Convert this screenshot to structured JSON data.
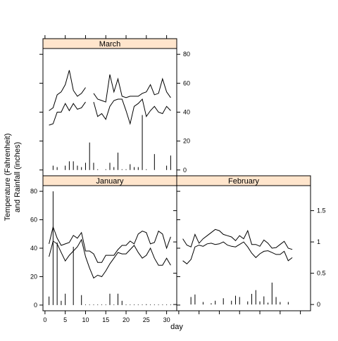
{
  "chart_data": {
    "type": "line",
    "xlabel": "day",
    "ylabel_lines": [
      "Temperature (Fahrenheit)",
      "and Rainfall (inches)"
    ],
    "x_ticks": [
      0,
      5,
      10,
      15,
      20,
      25,
      30
    ],
    "panels": [
      {
        "name": "January",
        "y_ticks": [
          0,
          20,
          40,
          60,
          80
        ],
        "ylim": [
          -4,
          84
        ],
        "xlim": [
          -0.5,
          32.5
        ],
        "series": [
          {
            "kind": "line",
            "x": [
              1,
              2,
              3,
              4,
              5,
              6,
              7,
              8,
              9,
              10,
              11,
              12,
              13,
              14,
              15,
              16,
              17,
              18,
              19,
              20,
              21,
              22,
              23,
              24,
              25,
              26,
              27,
              28,
              29,
              30,
              31
            ],
            "values": [
              43,
              55,
              47,
              42,
              43,
              44,
              49,
              47,
              51,
              38,
              38,
              36,
              30,
              30,
              35,
              35,
              35,
              39,
              42,
              42,
              45,
              43,
              50,
              52,
              51,
              43,
              44,
              52,
              50,
              40,
              48
            ]
          },
          {
            "kind": "line",
            "x": [
              1,
              2,
              3,
              4,
              5,
              6,
              7,
              8,
              9,
              10,
              11,
              12,
              13,
              14,
              15,
              16,
              17,
              18,
              19,
              20,
              21,
              22,
              23,
              24,
              25,
              26,
              27,
              28,
              29,
              30,
              31
            ],
            "values": [
              34,
              45,
              43,
              37,
              31,
              35,
              38,
              41,
              46,
              34,
              26,
              19,
              21,
              20,
              24,
              29,
              33,
              37,
              36,
              36,
              39,
              42,
              37,
              33,
              35,
              40,
              33,
              28,
              28,
              33,
              28
            ]
          },
          {
            "kind": "bar",
            "x": [
              1,
              2,
              3,
              4,
              5,
              7,
              9,
              10,
              11,
              12,
              13,
              14,
              15,
              16,
              17,
              18,
              19,
              20,
              21,
              22,
              23,
              24,
              25,
              26,
              27,
              28,
              29,
              30,
              31
            ],
            "values": [
              6,
              80,
              44,
              3,
              8,
              41,
              7,
              0.4,
              0.4,
              0.4,
              0.4,
              0.4,
              0.4,
              8,
              0.4,
              8,
              3,
              0.4,
              0.4,
              0.4,
              0.4,
              0.4,
              0.6,
              0.4,
              0.4,
              0.4,
              0.4,
              0.4,
              0.4
            ]
          }
        ]
      },
      {
        "name": "February",
        "y_ticks": [
          0,
          0.5,
          1,
          1.5
        ],
        "y_tick_labels": [
          "0",
          "0.5",
          "1",
          "1.5"
        ],
        "ylim": [
          -0.1,
          1.9
        ],
        "xlim": [
          -0.5,
          32.5
        ],
        "series": [
          {
            "kind": "line",
            "x": [
              1,
              2,
              3,
              4,
              5,
              6,
              7,
              8,
              9,
              10,
              11,
              12,
              13,
              14,
              15,
              16,
              17,
              18,
              19,
              20,
              21,
              22,
              23,
              24,
              25,
              26,
              27,
              28
            ],
            "values": [
              1.05,
              0.95,
              0.92,
              1.12,
              0.98,
              1.05,
              1.1,
              1.15,
              1.2,
              1.18,
              1.12,
              1.1,
              1.08,
              1.02,
              1.1,
              1.05,
              1.18,
              0.96,
              0.96,
              0.93,
              1.03,
              0.98,
              0.9,
              0.91,
              0.96,
              1.01,
              0.9,
              0.88
            ]
          },
          {
            "kind": "line",
            "x": [
              1,
              2,
              3,
              4,
              5,
              6,
              7,
              8,
              9,
              10,
              11,
              12,
              13,
              14,
              15,
              16,
              17,
              18,
              19,
              20,
              21,
              22,
              23,
              24,
              25,
              26,
              27,
              28
            ],
            "values": [
              0.7,
              0.65,
              0.72,
              0.92,
              0.95,
              0.93,
              0.97,
              0.98,
              0.96,
              0.97,
              1.0,
              0.95,
              0.93,
              0.92,
              0.96,
              1.0,
              0.92,
              0.82,
              0.75,
              0.81,
              0.85,
              0.86,
              0.83,
              0.8,
              0.8,
              0.85,
              0.7,
              0.75
            ]
          },
          {
            "kind": "bar",
            "x": [
              3,
              4,
              6,
              8,
              9,
              11,
              13,
              14,
              15,
              17,
              18,
              19,
              20,
              21,
              22,
              23,
              24,
              25,
              27
            ],
            "values": [
              0.12,
              0.16,
              0.04,
              0.02,
              0.06,
              0.1,
              0.06,
              0.14,
              0.12,
              0.05,
              0.17,
              0.23,
              0.05,
              0.13,
              0.03,
              0.35,
              0.12,
              0.04,
              0.04
            ]
          }
        ]
      },
      {
        "name": "March",
        "y_ticks": [
          0,
          20,
          40,
          60,
          80
        ],
        "ylim": [
          -4,
          84
        ],
        "xlim": [
          -0.5,
          32.5
        ],
        "series": [
          {
            "kind": "line",
            "x": [
              1,
              2,
              3,
              4,
              5,
              6,
              7,
              8,
              9,
              10
            ],
            "values": [
              41,
              43,
              52,
              54,
              59,
              69,
              55,
              51,
              53,
              57
            ]
          },
          {
            "kind": "line",
            "x": [
              12,
              13,
              14,
              15,
              16,
              17,
              18,
              19,
              20,
              21,
              22,
              23,
              24,
              25,
              26,
              27,
              28,
              29,
              30,
              31
            ],
            "values": [
              53,
              49,
              48,
              47,
              66,
              54,
              63,
              51,
              50,
              51,
              51,
              51,
              53,
              54,
              59,
              52,
              53,
              63,
              54,
              50
            ]
          },
          {
            "kind": "line",
            "x": [
              1,
              2,
              3,
              4,
              5,
              6,
              7,
              8,
              9,
              10
            ],
            "values": [
              31,
              32,
              40,
              40,
              46,
              41,
              46,
              42,
              43,
              47
            ]
          },
          {
            "kind": "line",
            "x": [
              12,
              13,
              14,
              15,
              16,
              17,
              18,
              19,
              20,
              21,
              22,
              23,
              24,
              25,
              26,
              27,
              28,
              29,
              30,
              31
            ],
            "values": [
              47,
              37,
              39,
              35,
              44,
              48,
              49,
              49,
              41,
              32,
              44,
              46,
              49,
              37,
              41,
              44,
              40,
              39,
              44,
              41
            ]
          },
          {
            "kind": "bar",
            "x": [
              2,
              3,
              5,
              6,
              7,
              8,
              9,
              10,
              11,
              12,
              13,
              15,
              16,
              17,
              18,
              19,
              20,
              21,
              22,
              23,
              24,
              25,
              27,
              30,
              31
            ],
            "values": [
              3,
              2,
              3,
              6,
              6,
              3,
              2,
              5,
              19,
              5,
              0.5,
              0.5,
              5,
              2,
              12,
              0.5,
              0.5,
              4,
              2,
              2,
              38,
              0.5,
              11,
              3,
              10
            ]
          }
        ]
      }
    ]
  }
}
